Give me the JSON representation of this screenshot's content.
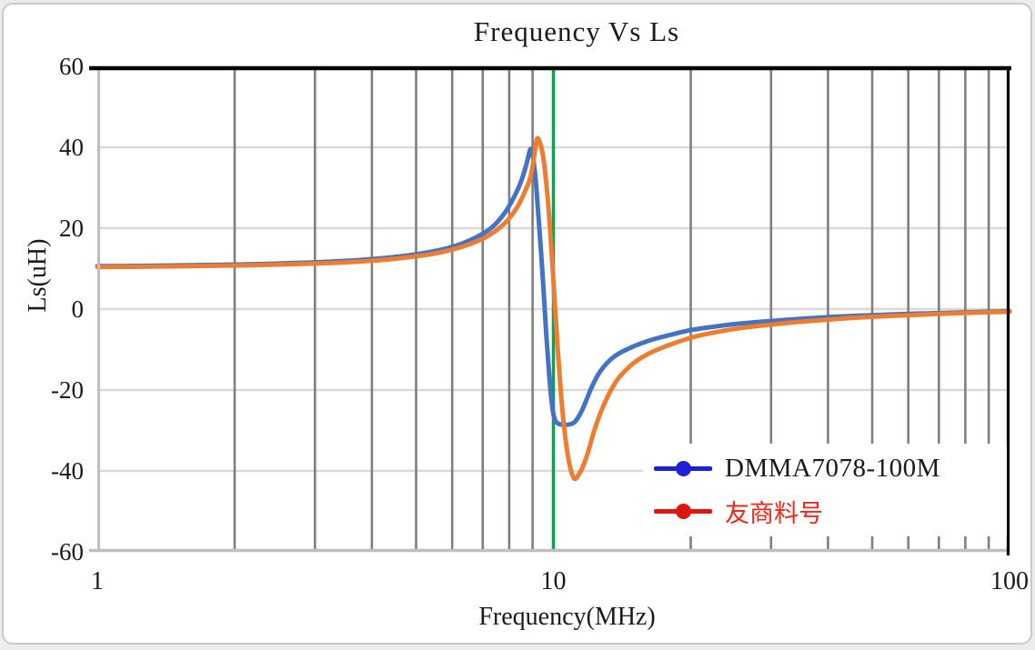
{
  "window": {
    "background": "#ececec",
    "card_background": "#ffffff",
    "card_border": "#c9c9c9"
  },
  "chart_data": {
    "type": "line",
    "title": "Frequency Vs Ls",
    "xlabel": "Frequency(MHz)",
    "ylabel": "Ls(uH)",
    "x_scale": "log",
    "xlim": [
      1,
      100
    ],
    "ylim": [
      -60,
      60
    ],
    "x_ticks": [
      1,
      10,
      100
    ],
    "y_ticks": [
      60,
      40,
      20,
      0,
      -20,
      -40,
      -60
    ],
    "x_minor_gridlines": [
      2,
      3,
      4,
      5,
      6,
      7,
      8,
      9,
      20,
      30,
      40,
      50,
      60,
      70,
      80,
      90
    ],
    "y_gridlines": [
      40,
      20,
      0,
      -20,
      -40
    ],
    "grid_color_vertical": "#7f7f7f",
    "grid_color_horizontal": "#d9d9d9",
    "border_top_color": "#000000",
    "border_right_color": "#000000",
    "border_left_color": "#bfbfbf",
    "border_bottom_color": "#bfbfbf",
    "marker_line": {
      "x": 10,
      "color": "#00a651",
      "width": 3.5
    },
    "legend_position": "bottom-right",
    "series": [
      {
        "name": "DMMA7078-100M",
        "color": "#4472c4",
        "legend_color": "#1f1fd3",
        "label_color": "#1a1a1a",
        "points": [
          [
            1,
            10.6
          ],
          [
            1.3,
            10.7
          ],
          [
            1.6,
            10.85
          ],
          [
            2,
            11.0
          ],
          [
            2.5,
            11.25
          ],
          [
            3,
            11.55
          ],
          [
            3.5,
            11.9
          ],
          [
            4,
            12.35
          ],
          [
            4.5,
            12.9
          ],
          [
            5,
            13.55
          ],
          [
            5.5,
            14.35
          ],
          [
            6,
            15.4
          ],
          [
            6.5,
            16.8
          ],
          [
            7,
            18.6
          ],
          [
            7.4,
            20.6
          ],
          [
            7.8,
            23.6
          ],
          [
            8.1,
            26.6
          ],
          [
            8.4,
            30.2
          ],
          [
            8.6,
            33.4
          ],
          [
            8.75,
            36.3
          ],
          [
            8.9,
            39.5
          ],
          [
            9.0,
            38.2
          ],
          [
            9.15,
            31.5
          ],
          [
            9.3,
            21
          ],
          [
            9.5,
            6
          ],
          [
            9.65,
            -6.5
          ],
          [
            9.8,
            -17
          ],
          [
            9.95,
            -24.5
          ],
          [
            10.1,
            -27.6
          ],
          [
            10.35,
            -28.5
          ],
          [
            10.7,
            -28.6
          ],
          [
            11.0,
            -28.3
          ],
          [
            11.2,
            -27.6
          ],
          [
            11.5,
            -25.5
          ],
          [
            11.8,
            -22.6
          ],
          [
            12.1,
            -19.6
          ],
          [
            12.5,
            -16.4
          ],
          [
            12.9,
            -14.2
          ],
          [
            13.4,
            -12.3
          ],
          [
            14,
            -10.8
          ],
          [
            15,
            -9.2
          ],
          [
            16,
            -8.0
          ],
          [
            17,
            -7.1
          ],
          [
            18,
            -6.4
          ],
          [
            20,
            -5.2
          ],
          [
            22,
            -4.5
          ],
          [
            25,
            -3.7
          ],
          [
            28,
            -3.2
          ],
          [
            32,
            -2.7
          ],
          [
            36,
            -2.3
          ],
          [
            40,
            -2.0
          ],
          [
            45,
            -1.7
          ],
          [
            50,
            -1.5
          ],
          [
            60,
            -1.2
          ],
          [
            70,
            -1.0
          ],
          [
            80,
            -0.8
          ],
          [
            90,
            -0.65
          ],
          [
            100,
            -0.5
          ]
        ]
      },
      {
        "name": "友商料号",
        "color": "#ed7d31",
        "legend_color": "#dc1712",
        "label_color": "#f3261b",
        "points": [
          [
            1,
            10.4
          ],
          [
            1.3,
            10.5
          ],
          [
            1.6,
            10.62
          ],
          [
            2,
            10.78
          ],
          [
            2.5,
            11.0
          ],
          [
            3,
            11.25
          ],
          [
            3.5,
            11.55
          ],
          [
            4,
            11.95
          ],
          [
            4.5,
            12.45
          ],
          [
            5,
            13.05
          ],
          [
            5.5,
            13.75
          ],
          [
            6,
            14.7
          ],
          [
            6.5,
            15.9
          ],
          [
            7,
            17.4
          ],
          [
            7.4,
            19.0
          ],
          [
            7.8,
            21.1
          ],
          [
            8.1,
            23.2
          ],
          [
            8.4,
            25.9
          ],
          [
            8.7,
            29.6
          ],
          [
            8.9,
            32.5
          ],
          [
            9.05,
            37
          ],
          [
            9.2,
            42
          ],
          [
            9.35,
            41
          ],
          [
            9.5,
            37.5
          ],
          [
            9.65,
            31
          ],
          [
            9.8,
            22
          ],
          [
            9.95,
            11
          ],
          [
            10.1,
            -1
          ],
          [
            10.25,
            -12
          ],
          [
            10.4,
            -21.5
          ],
          [
            10.55,
            -29
          ],
          [
            10.7,
            -34.5
          ],
          [
            10.85,
            -38.5
          ],
          [
            11.0,
            -41
          ],
          [
            11.15,
            -42
          ],
          [
            11.35,
            -41
          ],
          [
            11.6,
            -39
          ],
          [
            11.9,
            -35.5
          ],
          [
            12.25,
            -30.5
          ],
          [
            12.65,
            -26
          ],
          [
            13.05,
            -22.4
          ],
          [
            13.5,
            -19.2
          ],
          [
            14,
            -16.6
          ],
          [
            15,
            -13.3
          ],
          [
            16,
            -11.3
          ],
          [
            17,
            -9.9
          ],
          [
            18,
            -8.8
          ],
          [
            20,
            -7.1
          ],
          [
            22,
            -6.0
          ],
          [
            25,
            -4.9
          ],
          [
            28,
            -4.2
          ],
          [
            32,
            -3.5
          ],
          [
            36,
            -3.0
          ],
          [
            40,
            -2.6
          ],
          [
            45,
            -2.2
          ],
          [
            50,
            -1.9
          ],
          [
            60,
            -1.5
          ],
          [
            70,
            -1.2
          ],
          [
            80,
            -0.95
          ],
          [
            90,
            -0.78
          ],
          [
            100,
            -0.65
          ]
        ]
      }
    ]
  }
}
